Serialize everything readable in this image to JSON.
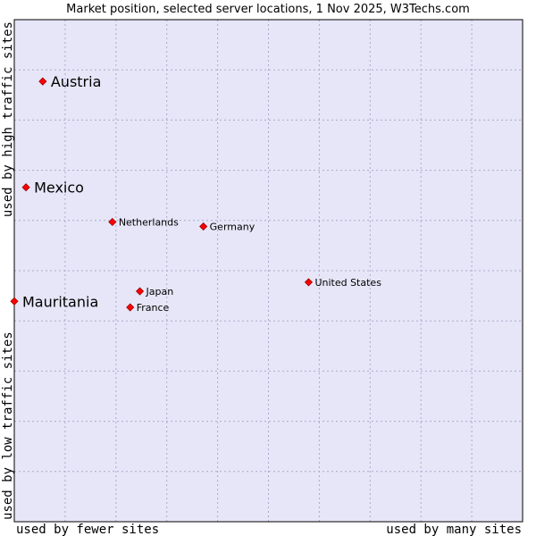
{
  "chart_data": {
    "type": "scatter",
    "title": "Market position, selected server locations, 1 Nov 2025, W3Techs.com",
    "xlabel_left": "used by fewer sites",
    "xlabel_right": "used by many sites",
    "ylabel_bottom": "used by low traffic sites",
    "ylabel_top": "used by high traffic sites",
    "xlim": [
      0,
      10
    ],
    "ylim": [
      0,
      10
    ],
    "grid": true,
    "colors": {
      "plot_background": "#e6e6f8",
      "grid": "#aaaacc",
      "border": "#000000",
      "marker": "#ff0000",
      "marker_outline": "#990000"
    },
    "points": [
      {
        "name": "Austria",
        "x": 0.56,
        "y": 8.77,
        "size": "large"
      },
      {
        "name": "Mexico",
        "x": 0.23,
        "y": 6.66,
        "size": "large"
      },
      {
        "name": "Mauritania",
        "x": 0.0,
        "y": 4.39,
        "size": "large"
      },
      {
        "name": "Netherlands",
        "x": 1.93,
        "y": 5.97,
        "size": "small"
      },
      {
        "name": "Germany",
        "x": 3.72,
        "y": 5.88,
        "size": "small"
      },
      {
        "name": "United States",
        "x": 5.79,
        "y": 4.77,
        "size": "small"
      },
      {
        "name": "Japan",
        "x": 2.47,
        "y": 4.59,
        "size": "small"
      },
      {
        "name": "France",
        "x": 2.28,
        "y": 4.27,
        "size": "small"
      }
    ]
  }
}
